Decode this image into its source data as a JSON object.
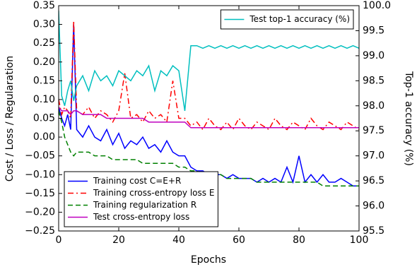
{
  "chart_data": {
    "type": "line",
    "xlabel": "Epochs",
    "ylabel": "Cost / Loss / Regularation",
    "y2label": "Top-1 accuracy (%)",
    "x": [
      0,
      1,
      2,
      3,
      4,
      5,
      6,
      8,
      10,
      12,
      14,
      16,
      18,
      20,
      22,
      24,
      26,
      28,
      30,
      32,
      34,
      36,
      38,
      40,
      42,
      44,
      46,
      48,
      50,
      52,
      54,
      56,
      58,
      60,
      62,
      64,
      66,
      68,
      70,
      72,
      74,
      76,
      78,
      80,
      82,
      84,
      86,
      88,
      90,
      92,
      94,
      96,
      98,
      100
    ],
    "xlim": [
      0,
      100
    ],
    "xticks": [
      0,
      20,
      40,
      60,
      80,
      100
    ],
    "ylim": [
      -0.25,
      0.35
    ],
    "yticks": [
      {
        "value": -0.25,
        "label": "−0.25"
      },
      {
        "value": -0.2,
        "label": "−0.20"
      },
      {
        "value": -0.15,
        "label": "−0.15"
      },
      {
        "value": -0.1,
        "label": "−0.10"
      },
      {
        "value": -0.05,
        "label": "−0.05"
      },
      {
        "value": 0,
        "label": "0.00"
      },
      0.05,
      {
        "value": 0.1,
        "label": "0.10"
      },
      0.15,
      {
        "value": 0.2,
        "label": "0.20"
      },
      0.25,
      {
        "value": 0.3,
        "label": "0.30"
      },
      0.35
    ],
    "y2lim": [
      95.5,
      100.0
    ],
    "y2ticks": [
      95.5,
      {
        "value": 96,
        "label": "96.0"
      },
      96.5,
      {
        "value": 97,
        "label": "97.0"
      },
      97.5,
      {
        "value": 98,
        "label": "98.0"
      },
      98.5,
      {
        "value": 99,
        "label": "99.0"
      },
      99.5,
      {
        "value": 100,
        "label": "100.0"
      }
    ],
    "legend": "lower left",
    "legend_y2": "upper right",
    "series": [
      {
        "name": "Training cost C=E+R",
        "color": "#0000ff",
        "dash": "solid",
        "values": [
          0.08,
          0.05,
          0.03,
          0.06,
          0.02,
          0.3,
          0.02,
          0.0,
          0.03,
          0.0,
          -0.01,
          0.02,
          -0.02,
          0.01,
          -0.03,
          -0.01,
          -0.02,
          0.0,
          -0.03,
          -0.02,
          -0.04,
          -0.01,
          -0.04,
          -0.05,
          -0.05,
          -0.08,
          -0.09,
          -0.09,
          -0.1,
          -0.1,
          -0.1,
          -0.11,
          -0.1,
          -0.11,
          -0.11,
          -0.11,
          -0.12,
          -0.11,
          -0.12,
          -0.11,
          -0.12,
          -0.08,
          -0.12,
          -0.05,
          -0.12,
          -0.1,
          -0.12,
          -0.1,
          -0.12,
          -0.12,
          -0.11,
          -0.12,
          -0.13,
          -0.13
        ]
      },
      {
        "name": "Training cross-entropy loss E",
        "color": "#ff0000",
        "dash": "dashdot",
        "values": [
          0.1,
          0.06,
          0.08,
          0.07,
          0.05,
          0.31,
          0.07,
          0.06,
          0.08,
          0.05,
          0.07,
          0.06,
          0.04,
          0.07,
          0.17,
          0.05,
          0.06,
          0.04,
          0.07,
          0.05,
          0.06,
          0.04,
          0.15,
          0.05,
          0.05,
          0.03,
          0.04,
          0.02,
          0.05,
          0.03,
          0.02,
          0.04,
          0.02,
          0.05,
          0.03,
          0.02,
          0.04,
          0.03,
          0.02,
          0.05,
          0.03,
          0.02,
          0.04,
          0.03,
          0.02,
          0.05,
          0.03,
          0.02,
          0.04,
          0.03,
          0.02,
          0.04,
          0.03,
          0.02
        ]
      },
      {
        "name": "Training regularization R",
        "color": "#008000",
        "dash": "dashed",
        "values": [
          0.07,
          0.04,
          0.0,
          -0.02,
          -0.04,
          -0.05,
          -0.04,
          -0.04,
          -0.04,
          -0.05,
          -0.05,
          -0.05,
          -0.06,
          -0.06,
          -0.06,
          -0.06,
          -0.06,
          -0.07,
          -0.07,
          -0.07,
          -0.07,
          -0.07,
          -0.07,
          -0.08,
          -0.08,
          -0.09,
          -0.09,
          -0.1,
          -0.1,
          -0.1,
          -0.1,
          -0.11,
          -0.11,
          -0.11,
          -0.11,
          -0.11,
          -0.12,
          -0.12,
          -0.12,
          -0.12,
          -0.12,
          -0.12,
          -0.12,
          -0.12,
          -0.12,
          -0.12,
          -0.12,
          -0.13,
          -0.13,
          -0.13,
          -0.13,
          -0.13,
          -0.13,
          -0.13
        ]
      },
      {
        "name": "Test cross-entropy loss",
        "color": "#bf00bf",
        "dash": "solid",
        "values": [
          0.08,
          0.07,
          0.07,
          0.07,
          0.06,
          0.07,
          0.07,
          0.06,
          0.06,
          0.06,
          0.06,
          0.05,
          0.05,
          0.05,
          0.05,
          0.05,
          0.05,
          0.05,
          0.04,
          0.04,
          0.04,
          0.04,
          0.04,
          0.04,
          0.04,
          0.025,
          0.025,
          0.025,
          0.025,
          0.025,
          0.025,
          0.025,
          0.025,
          0.025,
          0.025,
          0.025,
          0.025,
          0.025,
          0.025,
          0.025,
          0.025,
          0.025,
          0.025,
          0.025,
          0.025,
          0.025,
          0.025,
          0.025,
          0.025,
          0.025,
          0.025,
          0.025,
          0.025,
          0.025
        ]
      },
      {
        "name": "Test top-1 accuracy (%)",
        "color": "#00bfbf",
        "dash": "solid",
        "axis": "y2",
        "values": [
          99.9,
          98.2,
          98.0,
          98.3,
          98.5,
          98.1,
          98.4,
          98.6,
          98.3,
          98.7,
          98.5,
          98.6,
          98.4,
          98.7,
          98.6,
          98.5,
          98.7,
          98.6,
          98.8,
          98.3,
          98.7,
          98.6,
          98.8,
          98.7,
          97.9,
          99.2,
          99.2,
          99.15,
          99.2,
          99.15,
          99.2,
          99.15,
          99.2,
          99.15,
          99.2,
          99.15,
          99.2,
          99.15,
          99.2,
          99.15,
          99.2,
          99.15,
          99.2,
          99.15,
          99.2,
          99.15,
          99.2,
          99.15,
          99.2,
          99.15,
          99.2,
          99.15,
          99.2,
          99.15
        ]
      }
    ]
  }
}
